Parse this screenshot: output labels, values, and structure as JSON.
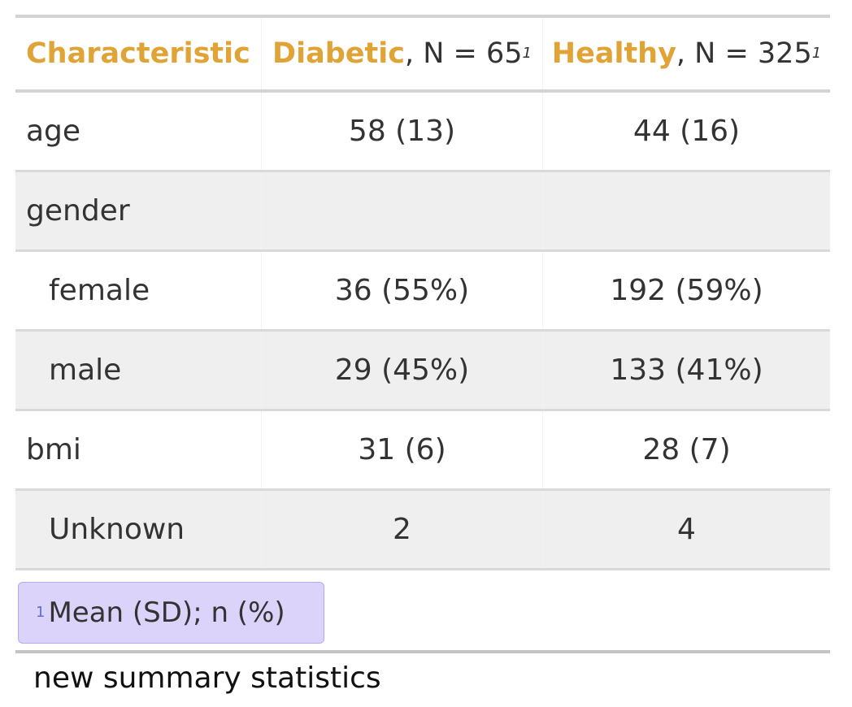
{
  "table": {
    "header": {
      "characteristic": "Characteristic",
      "col1_group": "Diabetic",
      "col1_n": ", N = 65",
      "col2_group": "Healthy",
      "col2_n": ", N = 325",
      "footnote_marker": "1"
    },
    "rows": [
      {
        "label": "age",
        "diabetic": "58 (13)",
        "healthy": "44 (16)"
      },
      {
        "label": "gender",
        "diabetic": "",
        "healthy": ""
      },
      {
        "label": "female",
        "diabetic": "36 (55%)",
        "healthy": "192 (59%)"
      },
      {
        "label": "male",
        "diabetic": "29 (45%)",
        "healthy": "133 (41%)"
      },
      {
        "label": "bmi",
        "diabetic": "31 (6)",
        "healthy": "28 (7)"
      },
      {
        "label": "Unknown",
        "diabetic": "2",
        "healthy": "4"
      }
    ],
    "footnote": {
      "marker": "1",
      "text": "Mean (SD); n (%)"
    }
  },
  "caption": "new summary statistics",
  "colors": {
    "header_accent": "#e0a335",
    "footnote_bg": "#dcd3fb",
    "row_shade": "#efefef"
  }
}
